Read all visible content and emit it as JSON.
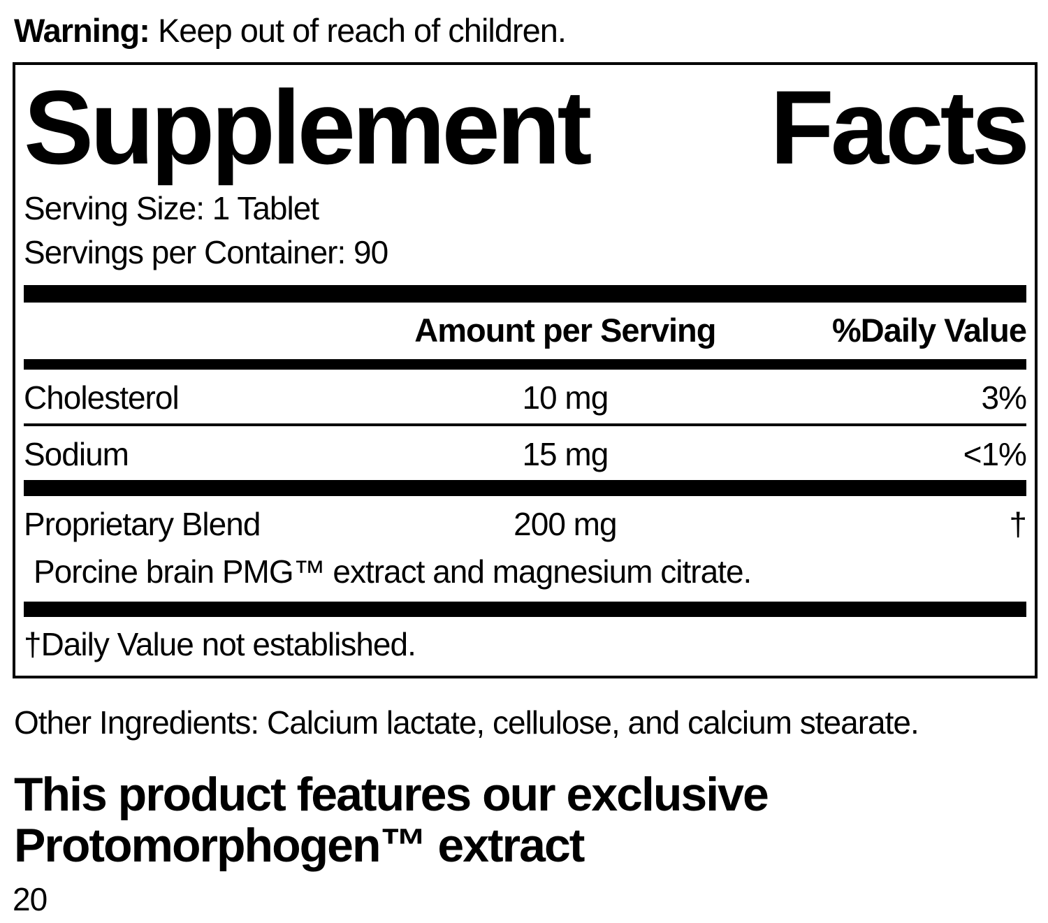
{
  "colors": {
    "ink": "#000000",
    "paper": "#ffffff"
  },
  "warning": {
    "label": "Warning:",
    "text": " Keep out of reach of children."
  },
  "panel": {
    "title": {
      "word1": "Supplement",
      "word2": "Facts"
    },
    "serving_size": "Serving Size: 1 Tablet",
    "servings_per_container": "Servings per Container: 90",
    "header": {
      "amount": "Amount per Serving",
      "daily_value": "%Daily Value"
    },
    "rows": [
      {
        "name": "Cholesterol",
        "amount": "10 mg",
        "dv": "3%"
      },
      {
        "name": "Sodium",
        "amount": "15 mg",
        "dv": "<1%"
      },
      {
        "name": "Proprietary Blend",
        "amount": "200 mg",
        "dv": "†",
        "description": "Porcine brain PMG™ extract and magnesium citrate."
      }
    ],
    "footnote": "†Daily Value not established."
  },
  "other_ingredients": "Other Ingredients: Calcium lactate, cellulose, and calcium stearate.",
  "feature": {
    "line1": "This product features our exclusive",
    "line2": "Protomorphogen™ extract"
  },
  "page_number": "20"
}
